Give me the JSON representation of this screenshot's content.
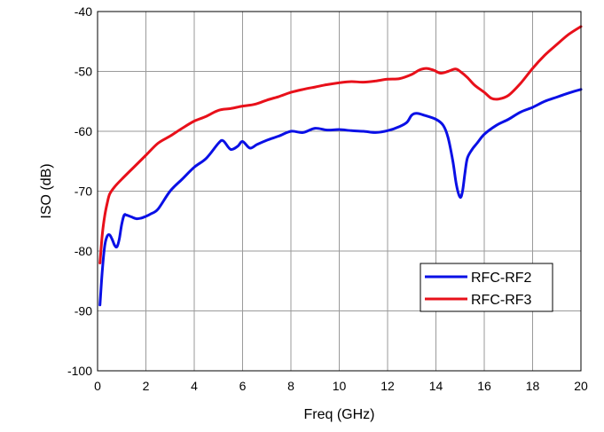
{
  "chart_data": {
    "type": "line",
    "title": "",
    "xlabel": "Freq (GHz)",
    "ylabel": "ISO (dB)",
    "xlim": [
      0,
      20
    ],
    "ylim": [
      -100,
      -40
    ],
    "xticks": [
      0,
      2,
      4,
      6,
      8,
      10,
      12,
      14,
      16,
      18,
      20
    ],
    "yticks": [
      -100,
      -90,
      -80,
      -70,
      -60,
      -50,
      -40
    ],
    "grid": true,
    "legend_position": "lower-right",
    "series": [
      {
        "name": "RFC-RF2",
        "color": "#0a10e6",
        "x": [
          0.1,
          0.2,
          0.3,
          0.4,
          0.5,
          0.6,
          0.7,
          0.8,
          0.9,
          1.0,
          1.1,
          1.2,
          1.4,
          1.6,
          1.8,
          2.0,
          2.2,
          2.5,
          3.0,
          3.5,
          4.0,
          4.5,
          5.0,
          5.2,
          5.5,
          5.8,
          6.0,
          6.3,
          6.6,
          7.0,
          7.5,
          8.0,
          8.5,
          9.0,
          9.5,
          10.0,
          10.5,
          11.0,
          11.5,
          12.0,
          12.5,
          12.8,
          13.0,
          13.2,
          13.5,
          14.0,
          14.3,
          14.5,
          14.7,
          14.85,
          15.0,
          15.1,
          15.2,
          15.3,
          15.5,
          15.7,
          16.0,
          16.5,
          17.0,
          17.5,
          18.0,
          18.5,
          19.0,
          19.5,
          20.0
        ],
        "y": [
          -89,
          -83,
          -79,
          -77.5,
          -77.3,
          -78,
          -79,
          -79.3,
          -78,
          -75.5,
          -74,
          -74,
          -74.3,
          -74.6,
          -74.5,
          -74.2,
          -73.8,
          -73,
          -70,
          -68,
          -66,
          -64.5,
          -62,
          -61.6,
          -63,
          -62.5,
          -61.7,
          -62.8,
          -62.2,
          -61.5,
          -60.8,
          -60,
          -60.2,
          -59.5,
          -59.8,
          -59.7,
          -59.9,
          -60,
          -60.2,
          -59.9,
          -59.2,
          -58.5,
          -57.3,
          -57,
          -57.3,
          -58,
          -59,
          -61,
          -65,
          -69,
          -71,
          -70,
          -67,
          -64.5,
          -63,
          -62,
          -60.5,
          -59,
          -58,
          -56.8,
          -56,
          -55,
          -54.3,
          -53.6,
          -53
        ]
      },
      {
        "name": "RFC-RF3",
        "color": "#e8101a",
        "x": [
          0.1,
          0.2,
          0.3,
          0.4,
          0.5,
          0.7,
          1.0,
          1.5,
          2.0,
          2.5,
          3.0,
          3.5,
          4.0,
          4.5,
          5.0,
          5.5,
          6.0,
          6.5,
          7.0,
          7.5,
          8.0,
          8.5,
          9.0,
          9.5,
          10.0,
          10.5,
          11.0,
          11.5,
          12.0,
          12.5,
          13.0,
          13.3,
          13.6,
          13.9,
          14.2,
          14.5,
          14.8,
          15.0,
          15.3,
          15.6,
          16.0,
          16.3,
          16.6,
          17.0,
          17.5,
          18.0,
          18.5,
          19.0,
          19.5,
          20.0
        ],
        "y": [
          -82,
          -77,
          -74,
          -72,
          -70.5,
          -69.3,
          -68,
          -66,
          -64,
          -62,
          -60.8,
          -59.5,
          -58.3,
          -57.5,
          -56.5,
          -56.2,
          -55.8,
          -55.5,
          -54.8,
          -54.2,
          -53.5,
          -53,
          -52.6,
          -52.2,
          -51.9,
          -51.7,
          -51.8,
          -51.6,
          -51.3,
          -51.2,
          -50.5,
          -49.8,
          -49.5,
          -49.8,
          -50.3,
          -50,
          -49.6,
          -50,
          -51,
          -52.3,
          -53.5,
          -54.5,
          -54.6,
          -54,
          -52,
          -49.5,
          -47.3,
          -45.5,
          -43.8,
          -42.5
        ]
      }
    ]
  }
}
